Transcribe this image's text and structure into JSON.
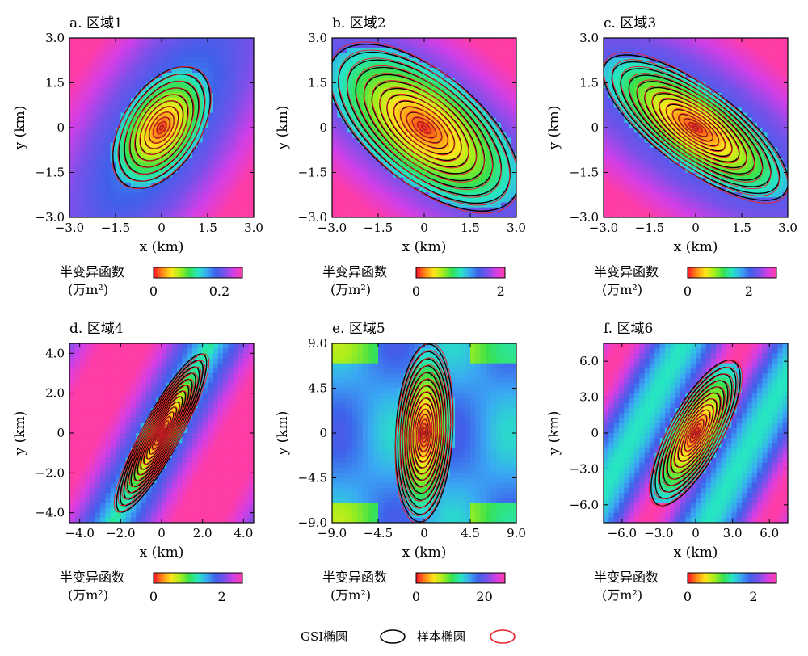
{
  "chart_data": [
    {
      "type": "heatmap",
      "title": "a. 区域1",
      "xlabel": "x (km)",
      "ylabel": "y (km)",
      "xlim": [
        -3.0,
        3.0
      ],
      "ylim": [
        -3.0,
        3.0
      ],
      "xticks": [
        "−3.0",
        "−1.5",
        "0",
        "1.5",
        "3.0"
      ],
      "yticks": [
        "3.0",
        "1.5",
        "0",
        "−1.5",
        "−3.0"
      ],
      "tick_values": [
        -3.0,
        -1.5,
        0,
        1.5,
        3.0
      ],
      "colorbar": {
        "label": "半变异函数",
        "unit": "(万m²)",
        "ticks": [
          "0",
          "0.2"
        ],
        "tick_values": [
          0,
          0.2
        ],
        "max": 0.27
      },
      "ellipse": {
        "major_semi_axis_km": 2.2,
        "minor_semi_axis_km": 1.3,
        "major_axis_angle_deg": 58,
        "rings": 11
      }
    },
    {
      "type": "heatmap",
      "title": "b. 区域2",
      "xlabel": "x (km)",
      "ylabel": "y (km)",
      "xlim": [
        -3.0,
        3.0
      ],
      "ylim": [
        -3.0,
        3.0
      ],
      "xticks": [
        "−3.0",
        "−1.5",
        "0",
        "1.5",
        "3.0"
      ],
      "yticks": [
        "3.0",
        "1.5",
        "0",
        "−1.5",
        "−3.0"
      ],
      "tick_values": [
        -3.0,
        -1.5,
        0,
        1.5,
        3.0
      ],
      "colorbar": {
        "label": "半变异函数",
        "unit": "(万m²)",
        "ticks": [
          "0",
          "2"
        ],
        "tick_values": [
          0,
          2
        ],
        "max": 2.1
      },
      "ellipse": {
        "major_semi_axis_km": 3.7,
        "minor_semi_axis_km": 1.85,
        "major_axis_angle_deg": -39,
        "rings": 14
      }
    },
    {
      "type": "heatmap",
      "title": "c. 区域3",
      "xlabel": "x (km)",
      "ylabel": "y (km)",
      "xlim": [
        -3.0,
        3.0
      ],
      "ylim": [
        -3.0,
        3.0
      ],
      "xticks": [
        "−3.0",
        "−1.5",
        "0",
        "1.5",
        "3.0"
      ],
      "yticks": [
        "3.0",
        "1.5",
        "0",
        "−1.5",
        "−3.0"
      ],
      "tick_values": [
        -3.0,
        -1.5,
        0,
        1.5,
        3.0
      ],
      "colorbar": {
        "label": "半变异函数",
        "unit": "(万m²)",
        "ticks": [
          "0",
          "2"
        ],
        "tick_values": [
          0,
          2
        ],
        "max": 2.9
      },
      "ellipse": {
        "major_semi_axis_km": 3.6,
        "minor_semi_axis_km": 1.35,
        "major_axis_angle_deg": -36,
        "rings": 14
      }
    },
    {
      "type": "heatmap",
      "title": "d. 区域4",
      "xlabel": "x (km)",
      "ylabel": "y (km)",
      "xlim": [
        -4.5,
        4.5
      ],
      "ylim": [
        -4.5,
        4.5
      ],
      "xticks": [
        "−4.0",
        "−2.0",
        "0",
        "2.0",
        "4.0"
      ],
      "yticks": [
        "4.0",
        "2.0",
        "0",
        "−2.0",
        "−4.0"
      ],
      "tick_values": [
        -4.0,
        -2.0,
        0,
        2.0,
        4.0
      ],
      "colorbar": {
        "label": "半变异函数",
        "unit": "(万m²)",
        "ticks": [
          "0",
          "2"
        ],
        "tick_values": [
          0,
          2
        ],
        "max": 2.6
      },
      "ellipse": {
        "major_semi_axis_km": 4.35,
        "minor_semi_axis_km": 0.95,
        "major_axis_angle_deg": 62,
        "rings": 16
      }
    },
    {
      "type": "heatmap",
      "title": "e. 区域5",
      "xlabel": "x (km)",
      "ylabel": "y (km)",
      "xlim": [
        -9.0,
        9.0
      ],
      "ylim": [
        -9.0,
        9.0
      ],
      "xticks": [
        "−9.0",
        "−4.5",
        "0",
        "4.5",
        "9.0"
      ],
      "yticks": [
        "9.0",
        "4.5",
        "0",
        "−4.5",
        "−9.0"
      ],
      "tick_values": [
        -9.0,
        -4.5,
        0,
        4.5,
        9.0
      ],
      "colorbar": {
        "label": "半变异函数",
        "unit": "(万m²)",
        "ticks": [
          "0",
          "20"
        ],
        "tick_values": [
          0,
          20
        ],
        "max": 26
      },
      "ellipse": {
        "major_semi_axis_km": 8.7,
        "minor_semi_axis_km": 2.85,
        "major_axis_angle_deg": 87,
        "rings": 16
      }
    },
    {
      "type": "heatmap",
      "title": "f. 区域6",
      "xlabel": "x (km)",
      "ylabel": "y (km)",
      "xlim": [
        -7.5,
        7.5
      ],
      "ylim": [
        -7.5,
        7.5
      ],
      "xticks": [
        "−6.0",
        "−3.0",
        "0",
        "3.0",
        "6.0"
      ],
      "yticks": [
        "6.0",
        "3.0",
        "0",
        "−3.0",
        "−6.0"
      ],
      "tick_values": [
        -6.0,
        -3.0,
        0,
        3.0,
        6.0
      ],
      "colorbar": {
        "label": "半变异函数",
        "unit": "(万m²)",
        "ticks": [
          "0",
          "2"
        ],
        "tick_values": [
          0,
          2
        ],
        "max": 2.7
      },
      "ellipse": {
        "major_semi_axis_km": 6.6,
        "minor_semi_axis_km": 2.2,
        "major_axis_angle_deg": 62,
        "rings": 14
      }
    }
  ],
  "legend": {
    "items": [
      {
        "label": "GSI椭圆",
        "color": "#000000"
      },
      {
        "label": "样本椭圆",
        "color": "#e8212b"
      }
    ]
  },
  "colors": {
    "colormap": [
      "#ff0d28",
      "#ff8a17",
      "#ffe61c",
      "#a6ee1c",
      "#38e14d",
      "#26e6c2",
      "#3aa9f3",
      "#3f60ea",
      "#7851ea",
      "#d43ee6",
      "#ff3da7"
    ],
    "gsi_ellipse": "#000000",
    "sample_ellipse": "#e8212b"
  }
}
